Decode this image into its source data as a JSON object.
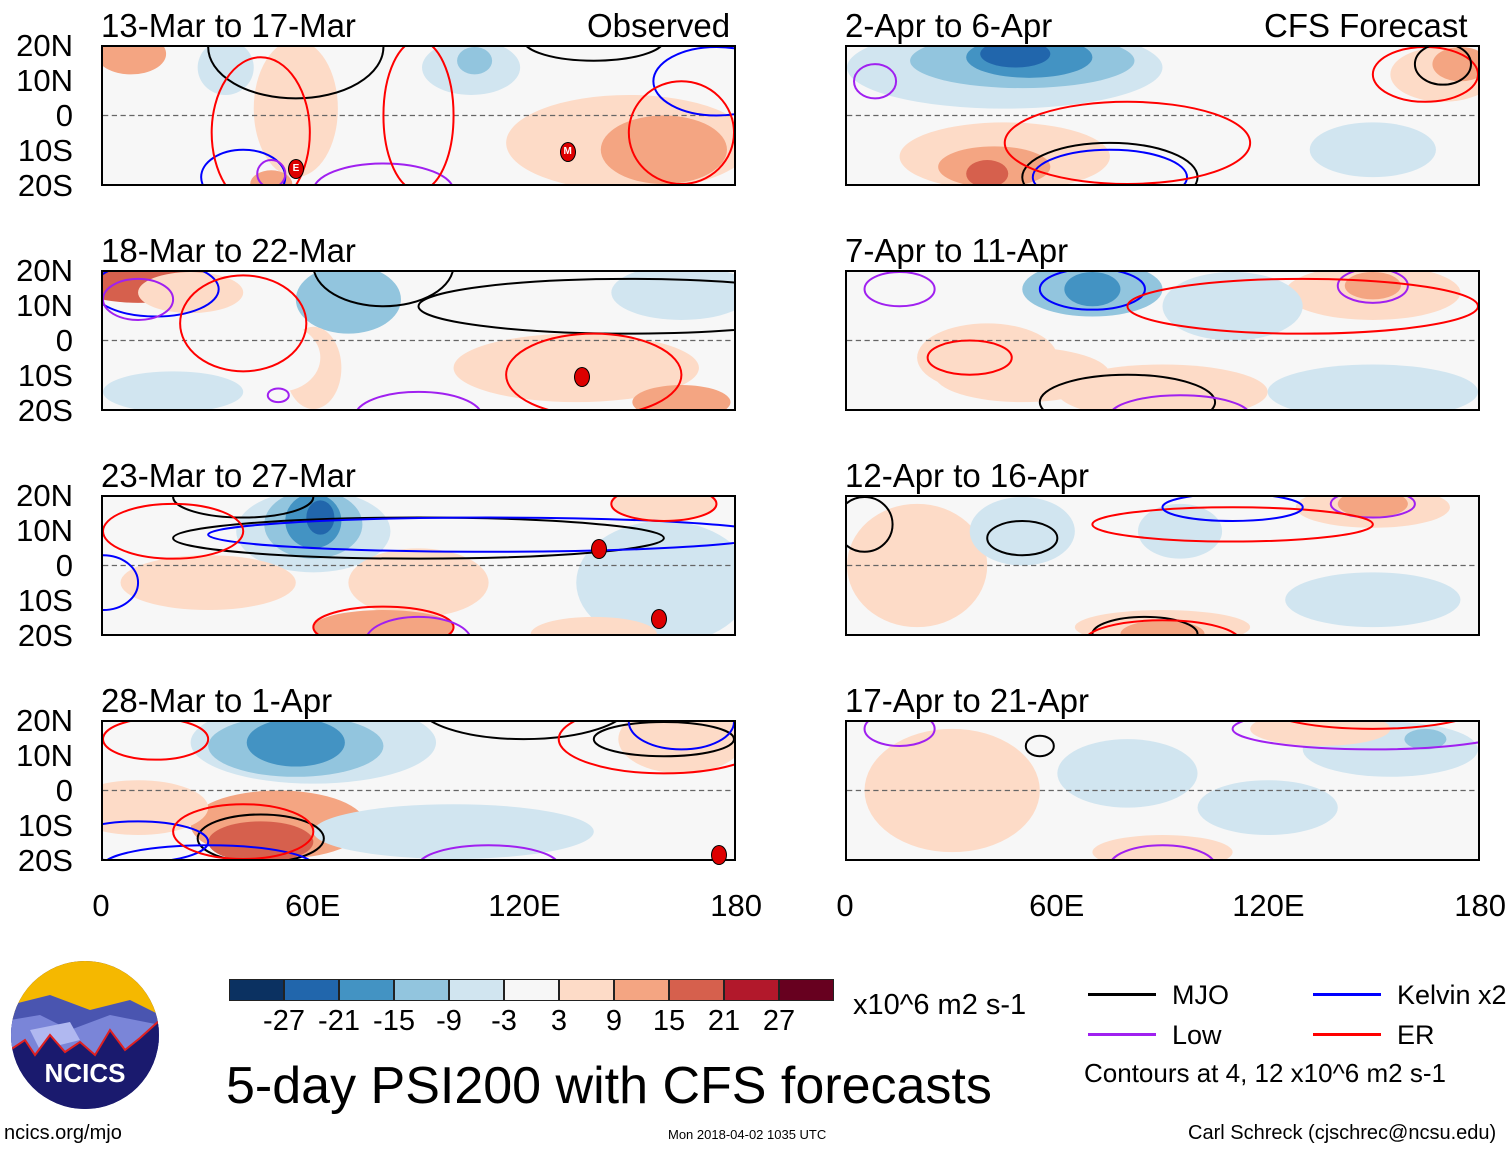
{
  "header": {
    "observed_label": "Observed",
    "forecast_label": "CFS Forecast"
  },
  "lat_labels": [
    "20N",
    "10N",
    "0",
    "10S",
    "20S"
  ],
  "lon_labels": [
    "0",
    "60E",
    "120E",
    "180"
  ],
  "colors": {
    "levels": [
      "#0b3161",
      "#2166ac",
      "#4393c3",
      "#92c5de",
      "#d1e5f0",
      "#f7f7f7",
      "#fddbc7",
      "#f4a582",
      "#d6604d",
      "#b2182b",
      "#67001f"
    ],
    "MJO": "#000000",
    "Kelvin": "#0000ff",
    "Low": "#a020f0",
    "ER": "#ff0000"
  },
  "colorbar": {
    "ticks": [
      "-27",
      "-21",
      "-15",
      "-9",
      "-3",
      "3",
      "9",
      "15",
      "21",
      "27"
    ],
    "units": "x10^6 m2 s-1"
  },
  "legend": {
    "items": [
      {
        "key": "MJO",
        "label": "MJO"
      },
      {
        "key": "Kelvin",
        "label": "Kelvin x2"
      },
      {
        "key": "Low",
        "label": "Low"
      },
      {
        "key": "ER",
        "label": "ER"
      }
    ],
    "note": "Contours at 4, 12 x10^6 m2 s-1"
  },
  "footer": {
    "title": "5-day PSI200 with CFS forecasts",
    "site": "ncics.org/mjo",
    "timestamp": "Mon 2018-04-02 1035 UTC",
    "author": "Carl Schreck (cjschrec@ncsu.edu)",
    "logo_text": "NCICS"
  },
  "panels": [
    {
      "title": "13-Mar to 17-Mar",
      "blobs": [
        [
          8,
          18,
          10,
          6,
          7
        ],
        [
          55,
          2,
          12,
          20,
          6
        ],
        [
          35,
          14,
          8,
          8,
          4
        ],
        [
          105,
          14,
          14,
          8,
          4
        ],
        [
          106,
          16,
          5,
          4,
          3
        ],
        [
          150,
          -8,
          35,
          14,
          6
        ],
        [
          160,
          -10,
          18,
          10,
          7
        ],
        [
          48,
          -20,
          6,
          4,
          7
        ]
      ],
      "contours": [
        [
          55,
          20,
          25,
          15,
          "MJO"
        ],
        [
          140,
          22,
          20,
          6,
          "MJO"
        ],
        [
          175,
          10,
          18,
          10,
          "Kelvin"
        ],
        [
          40,
          -18,
          12,
          8,
          "Kelvin"
        ],
        [
          80,
          -22,
          20,
          8,
          "Low"
        ],
        [
          48,
          -17,
          4,
          4,
          "Low"
        ],
        [
          90,
          0,
          10,
          22,
          "ER"
        ],
        [
          165,
          -5,
          15,
          15,
          "ER"
        ],
        [
          45,
          -5,
          14,
          22,
          "ER"
        ]
      ],
      "storms": [
        [
          55,
          -15,
          "E"
        ],
        [
          132,
          -10,
          "M"
        ]
      ]
    },
    {
      "title": "2-Apr to 6-Apr",
      "blobs": [
        [
          45,
          14,
          45,
          12,
          4
        ],
        [
          50,
          16,
          32,
          8,
          3
        ],
        [
          52,
          17,
          18,
          6,
          2
        ],
        [
          48,
          18,
          10,
          4,
          1
        ],
        [
          170,
          12,
          15,
          8,
          6
        ],
        [
          175,
          15,
          8,
          5,
          7
        ],
        [
          45,
          -12,
          30,
          10,
          6
        ],
        [
          42,
          -15,
          16,
          6,
          7
        ],
        [
          40,
          -17,
          6,
          4,
          8
        ],
        [
          150,
          -10,
          18,
          8,
          4
        ]
      ],
      "contours": [
        [
          75,
          -18,
          25,
          10,
          "MJO"
        ],
        [
          75,
          -18,
          22,
          8,
          "Kelvin"
        ],
        [
          165,
          12,
          15,
          8,
          "ER"
        ],
        [
          80,
          -8,
          35,
          12,
          "ER"
        ],
        [
          170,
          15,
          8,
          6,
          "MJO"
        ],
        [
          8,
          10,
          6,
          5,
          "Low"
        ]
      ],
      "storms": []
    },
    {
      "title": "18-Mar to 22-Mar",
      "blobs": [
        [
          10,
          18,
          20,
          7,
          8
        ],
        [
          25,
          14,
          15,
          6,
          6
        ],
        [
          70,
          12,
          15,
          10,
          3
        ],
        [
          165,
          14,
          20,
          8,
          4
        ],
        [
          60,
          -8,
          8,
          12,
          6
        ],
        [
          135,
          -8,
          35,
          10,
          6
        ],
        [
          165,
          -18,
          14,
          5,
          7
        ],
        [
          20,
          -15,
          20,
          6,
          4
        ],
        [
          50,
          -5,
          12,
          10,
          5
        ]
      ],
      "contours": [
        [
          80,
          22,
          20,
          12,
          "MJO"
        ],
        [
          150,
          10,
          60,
          8,
          "MJO"
        ],
        [
          15,
          15,
          18,
          8,
          "Kelvin"
        ],
        [
          40,
          5,
          18,
          14,
          "ER"
        ],
        [
          140,
          -10,
          25,
          12,
          "ER"
        ],
        [
          90,
          -22,
          18,
          7,
          "Low"
        ],
        [
          50,
          -16,
          3,
          2,
          "Low"
        ],
        [
          10,
          12,
          10,
          6,
          "Low"
        ]
      ],
      "storms": [
        [
          136,
          -10,
          ""
        ]
      ]
    },
    {
      "title": "7-Apr to 11-Apr",
      "blobs": [
        [
          70,
          15,
          20,
          8,
          3
        ],
        [
          70,
          15,
          8,
          5,
          2
        ],
        [
          150,
          14,
          25,
          8,
          6
        ],
        [
          150,
          16,
          8,
          4,
          7
        ],
        [
          40,
          -5,
          20,
          10,
          6
        ],
        [
          50,
          -10,
          25,
          8,
          6
        ],
        [
          90,
          -15,
          30,
          8,
          6
        ],
        [
          150,
          -15,
          30,
          8,
          4
        ],
        [
          110,
          10,
          20,
          10,
          4
        ]
      ],
      "contours": [
        [
          70,
          15,
          15,
          6,
          "Kelvin"
        ],
        [
          150,
          16,
          10,
          5,
          "Low"
        ],
        [
          130,
          10,
          50,
          8,
          "ER"
        ],
        [
          35,
          -5,
          12,
          5,
          "ER"
        ],
        [
          80,
          -18,
          25,
          8,
          "MJO"
        ],
        [
          95,
          -22,
          20,
          6,
          "Low"
        ],
        [
          15,
          15,
          10,
          5,
          "Low"
        ]
      ],
      "storms": []
    },
    {
      "title": "23-Mar to 27-Mar",
      "blobs": [
        [
          60,
          10,
          22,
          12,
          4
        ],
        [
          60,
          12,
          14,
          10,
          3
        ],
        [
          60,
          13,
          8,
          8,
          2
        ],
        [
          62,
          14,
          4,
          5,
          1
        ],
        [
          160,
          -5,
          25,
          18,
          4
        ],
        [
          160,
          18,
          15,
          5,
          6
        ],
        [
          30,
          -5,
          25,
          8,
          6
        ],
        [
          90,
          -5,
          20,
          10,
          6
        ],
        [
          80,
          -18,
          20,
          5,
          7
        ],
        [
          140,
          -20,
          18,
          5,
          6
        ]
      ],
      "contours": [
        [
          90,
          8,
          70,
          6,
          "MJO"
        ],
        [
          40,
          20,
          20,
          6,
          "MJO"
        ],
        [
          110,
          9,
          80,
          5,
          "Kelvin"
        ],
        [
          160,
          18,
          15,
          5,
          "ER"
        ],
        [
          20,
          10,
          20,
          8,
          "ER"
        ],
        [
          80,
          -18,
          20,
          6,
          "ER"
        ],
        [
          90,
          -22,
          15,
          7,
          "Low"
        ],
        [
          0,
          -5,
          10,
          8,
          "Kelvin"
        ]
      ],
      "storms": [
        [
          141,
          5,
          ""
        ],
        [
          158,
          -15,
          ""
        ]
      ]
    },
    {
      "title": "12-Apr to 16-Apr",
      "blobs": [
        [
          150,
          17,
          22,
          6,
          6
        ],
        [
          150,
          18,
          10,
          4,
          7
        ],
        [
          20,
          0,
          20,
          18,
          6
        ],
        [
          50,
          10,
          15,
          10,
          4
        ],
        [
          95,
          10,
          12,
          8,
          4
        ],
        [
          90,
          -18,
          25,
          5,
          6
        ],
        [
          90,
          -20,
          12,
          4,
          7
        ],
        [
          150,
          -10,
          25,
          8,
          4
        ]
      ],
      "contours": [
        [
          50,
          8,
          10,
          5,
          "MJO"
        ],
        [
          5,
          12,
          8,
          8,
          "MJO"
        ],
        [
          150,
          18,
          12,
          4,
          "Low"
        ],
        [
          110,
          12,
          40,
          5,
          "ER"
        ],
        [
          110,
          17,
          20,
          4,
          "Kelvin"
        ],
        [
          85,
          -20,
          15,
          5,
          "MJO"
        ],
        [
          90,
          -22,
          22,
          6,
          "ER"
        ]
      ],
      "storms": []
    },
    {
      "title": "28-Mar to 1-Apr",
      "blobs": [
        [
          60,
          14,
          35,
          12,
          4
        ],
        [
          55,
          13,
          25,
          9,
          3
        ],
        [
          55,
          14,
          14,
          7,
          2
        ],
        [
          50,
          -10,
          25,
          10,
          7
        ],
        [
          45,
          -15,
          15,
          6,
          8
        ],
        [
          165,
          15,
          18,
          10,
          6
        ],
        [
          10,
          -5,
          20,
          8,
          6
        ],
        [
          100,
          -12,
          40,
          8,
          4
        ]
      ],
      "contours": [
        [
          45,
          -14,
          18,
          7,
          "MJO"
        ],
        [
          120,
          25,
          30,
          10,
          "MJO"
        ],
        [
          160,
          15,
          20,
          5,
          "MJO"
        ],
        [
          10,
          -15,
          20,
          6,
          "Kelvin"
        ],
        [
          30,
          -22,
          30,
          6,
          "Kelvin"
        ],
        [
          165,
          20,
          15,
          8,
          "Kelvin"
        ],
        [
          160,
          15,
          30,
          10,
          "ER"
        ],
        [
          40,
          -12,
          20,
          8,
          "ER"
        ],
        [
          110,
          -22,
          20,
          6,
          "Low"
        ],
        [
          15,
          15,
          15,
          6,
          "ER"
        ]
      ],
      "storms": [
        [
          175,
          -18,
          ""
        ]
      ]
    },
    {
      "title": "17-Apr to 21-Apr",
      "blobs": [
        [
          80,
          5,
          20,
          10,
          4
        ],
        [
          120,
          -5,
          20,
          8,
          4
        ],
        [
          155,
          12,
          25,
          8,
          4
        ],
        [
          165,
          15,
          6,
          3,
          3
        ],
        [
          30,
          0,
          25,
          18,
          6
        ],
        [
          90,
          -18,
          20,
          5,
          6
        ],
        [
          135,
          18,
          20,
          5,
          6
        ]
      ],
      "contours": [
        [
          55,
          13,
          4,
          3,
          "MJO"
        ],
        [
          90,
          -22,
          15,
          6,
          "Low"
        ],
        [
          90,
          -24,
          8,
          3,
          "MJO"
        ],
        [
          150,
          18,
          40,
          6,
          "Low"
        ],
        [
          150,
          24,
          30,
          6,
          "ER"
        ],
        [
          15,
          18,
          10,
          5,
          "Low"
        ]
      ],
      "storms": []
    }
  ]
}
